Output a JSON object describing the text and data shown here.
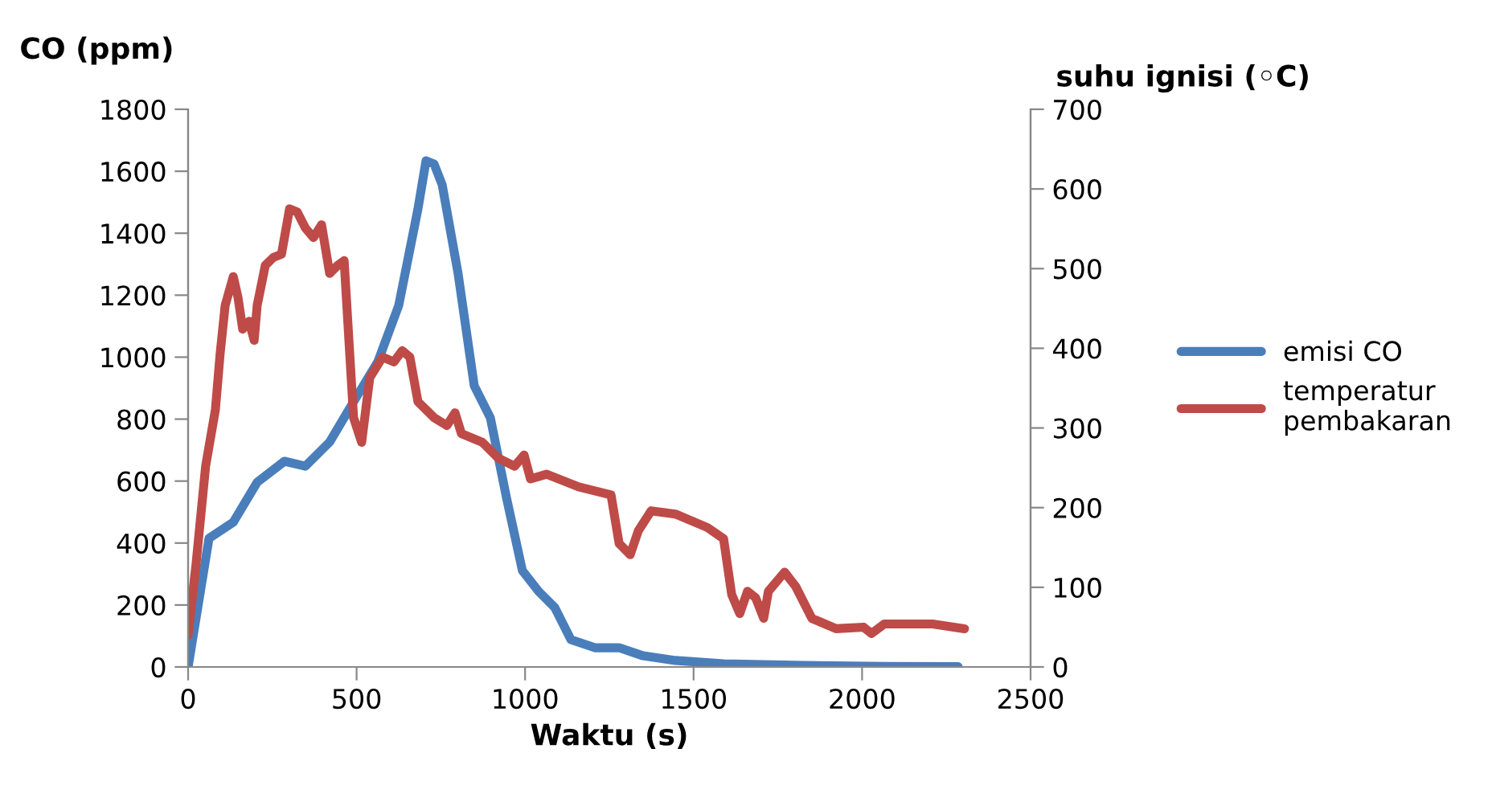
{
  "chart_data": {
    "type": "line",
    "xlabel": "Waktu (s)",
    "ylabel": "CO (ppm)",
    "y2label": "suhu ignisi (◦C)",
    "xlim": [
      0,
      2500
    ],
    "xticks": [
      0,
      500,
      1000,
      1500,
      2000,
      2500
    ],
    "ylim": [
      0,
      1800
    ],
    "yticks": [
      0,
      200,
      400,
      600,
      800,
      1000,
      1200,
      1400,
      1600,
      1800
    ],
    "y2lim": [
      0,
      700
    ],
    "y2ticks": [
      0,
      100,
      200,
      300,
      400,
      500,
      600,
      700
    ],
    "grid": false,
    "legend": "right",
    "series": [
      {
        "name": "emisi CO",
        "color": "#4a7ebb",
        "x": [
          0,
          62,
          134,
          205,
          286,
          348,
          420,
          491,
          563,
          625,
          682,
          706,
          730,
          754,
          801,
          849,
          897,
          945,
          992,
          1040,
          1088,
          1136,
          1207,
          1279,
          1350,
          1446,
          1589,
          1827,
          2066,
          2285
        ],
        "values": [
          0,
          415,
          467,
          596,
          664,
          648,
          726,
          856,
          985,
          1167,
          1478,
          1634,
          1623,
          1556,
          1271,
          908,
          804,
          545,
          311,
          244,
          192,
          88,
          62,
          62,
          36,
          21,
          10,
          5,
          2,
          1
        ]
      },
      {
        "name": "temperatur\npembakaran",
        "color": "#be4b48",
        "axis": "y2",
        "x": [
          0,
          24,
          52,
          81,
          95,
          110,
          134,
          148,
          162,
          181,
          196,
          205,
          229,
          253,
          277,
          301,
          324,
          348,
          372,
          396,
          420,
          444,
          463,
          491,
          515,
          539,
          577,
          611,
          635,
          658,
          682,
          730,
          768,
          792,
          811,
          873,
          921,
          969,
          997,
          1016,
          1064,
          1159,
          1255,
          1279,
          1312,
          1336,
          1374,
          1446,
          1541,
          1589,
          1613,
          1637,
          1660,
          1684,
          1708,
          1722,
          1770,
          1803,
          1851,
          1923,
          2004,
          2028,
          2066,
          2209,
          2304
        ],
        "values": [
          40,
          131,
          252,
          323,
          393,
          454,
          490,
          464,
          424,
          434,
          410,
          454,
          504,
          514,
          518,
          575,
          571,
          551,
          539,
          555,
          494,
          504,
          510,
          313,
          282,
          363,
          389,
          383,
          397,
          389,
          333,
          313,
          303,
          319,
          293,
          282,
          262,
          252,
          266,
          236,
          242,
          226,
          216,
          155,
          141,
          171,
          196,
          192,
          175,
          161,
          91,
          67,
          95,
          87,
          61,
          95,
          119,
          101,
          61,
          48,
          50,
          42,
          54,
          54,
          48
        ]
      }
    ]
  }
}
